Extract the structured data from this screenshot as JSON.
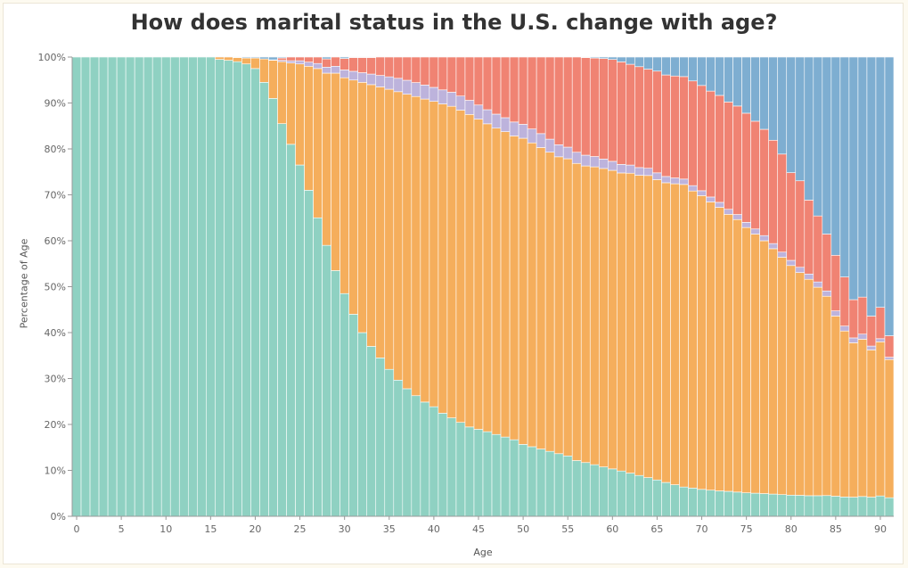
{
  "chart_data": {
    "type": "bar",
    "title": "How does marital status in the U.S. change with age?",
    "xlabel": "Age",
    "ylabel": "Percentage of Age",
    "stacked": true,
    "normalized": true,
    "ylim": [
      0,
      100
    ],
    "xlim": [
      0,
      91
    ],
    "y_ticks": [
      "0%",
      "10%",
      "20%",
      "30%",
      "40%",
      "50%",
      "60%",
      "70%",
      "80%",
      "90%",
      "100%"
    ],
    "x_ticks": [
      "0",
      "5",
      "10",
      "15",
      "20",
      "25",
      "30",
      "35",
      "40",
      "45",
      "50",
      "55",
      "60",
      "65",
      "70",
      "75",
      "80",
      "85",
      "90"
    ],
    "colors": [
      "#8fd1c2",
      "#f5ae5c",
      "#bdb3dc",
      "#f08373",
      "#7eaed1"
    ],
    "x": [
      0,
      1,
      2,
      3,
      4,
      5,
      6,
      7,
      8,
      9,
      10,
      11,
      12,
      13,
      14,
      15,
      16,
      17,
      18,
      19,
      20,
      21,
      22,
      23,
      24,
      25,
      26,
      27,
      28,
      29,
      30,
      31,
      32,
      33,
      34,
      35,
      36,
      37,
      38,
      39,
      40,
      41,
      42,
      43,
      44,
      45,
      46,
      47,
      48,
      49,
      50,
      51,
      52,
      53,
      54,
      55,
      56,
      57,
      58,
      59,
      60,
      61,
      62,
      63,
      64,
      65,
      66,
      67,
      68,
      69,
      70,
      71,
      72,
      73,
      74,
      75,
      76,
      77,
      78,
      79,
      80,
      81,
      82,
      83,
      84,
      85,
      86,
      87,
      88,
      89,
      90,
      91
    ],
    "series": [
      {
        "values": [
          100,
          100,
          100,
          100,
          100,
          100,
          100,
          100,
          100,
          100,
          100,
          100,
          100,
          100,
          100,
          100,
          99.5,
          99.3,
          99,
          98.5,
          97.5,
          94.5,
          91,
          85.5,
          81,
          76.5,
          71,
          65,
          59,
          53.5,
          48.5,
          44,
          40,
          37,
          34.5,
          32,
          29.5,
          27.5,
          26,
          24.5,
          23.5,
          22,
          21,
          20,
          19,
          18.5,
          18,
          17.5,
          17,
          16.5,
          15.5,
          15,
          14.5,
          14,
          13.5,
          13,
          12,
          11.5,
          11,
          10.5,
          10,
          9.5,
          9,
          8.5,
          8,
          7.5,
          7,
          6.5,
          6,
          5.8,
          5.5,
          5.3,
          5.1,
          5,
          4.8,
          4.6,
          4.5,
          4.4,
          4.3,
          4.2,
          4.1,
          4,
          3.9,
          3.9,
          3.9,
          3.9,
          3.9,
          3.9,
          3.9,
          3.9,
          3.9,
          3.9
        ]
      },
      {
        "values": [
          0,
          0,
          0,
          0,
          0,
          0,
          0,
          0,
          0,
          0,
          0,
          0,
          0,
          0,
          0,
          0,
          0.5,
          0.7,
          0.9,
          1.3,
          2.3,
          5.1,
          8.3,
          13.5,
          17.7,
          22,
          27,
          32.5,
          37.5,
          43,
          47,
          51,
          54.5,
          57,
          59,
          61,
          62.5,
          63.5,
          64.5,
          65,
          65.5,
          66,
          66.5,
          66.5,
          66.5,
          66,
          65.5,
          65.5,
          65.5,
          65.5,
          66,
          65.5,
          65,
          64.5,
          64,
          64,
          64,
          63.5,
          63.5,
          63.5,
          63,
          62.5,
          62.5,
          62.5,
          62.5,
          62,
          62,
          62,
          62,
          61,
          60,
          58.5,
          57,
          55.5,
          54,
          52,
          50.5,
          49,
          47.5,
          46,
          44.5,
          42.5,
          41,
          39.5,
          37.5,
          35,
          33.5,
          31.5,
          31,
          30,
          29.5,
          29
        ]
      },
      {
        "values": [
          0,
          0,
          0,
          0,
          0,
          0,
          0,
          0,
          0,
          0,
          0,
          0,
          0,
          0,
          0,
          0,
          0,
          0,
          0,
          0,
          0,
          0,
          0.1,
          0.3,
          0.5,
          0.7,
          0.9,
          1.1,
          1.3,
          1.5,
          1.7,
          1.9,
          2.1,
          2.3,
          2.5,
          2.7,
          2.9,
          3,
          3,
          3,
          3,
          3,
          3,
          3,
          3,
          3,
          3,
          3,
          3,
          3,
          3,
          3,
          3,
          2.8,
          2.6,
          2.5,
          2.4,
          2.3,
          2.2,
          2,
          1.9,
          1.8,
          1.7,
          1.6,
          1.5,
          1.4,
          1.3,
          1.2,
          1.1,
          1.1,
          1,
          1,
          1,
          1,
          1,
          1,
          1,
          1,
          1,
          1,
          1,
          1,
          1,
          1,
          1,
          1,
          1,
          1,
          1,
          0.8,
          0.6,
          0.5
        ]
      },
      {
        "values": [
          0,
          0,
          0,
          0,
          0,
          0,
          0,
          0,
          0,
          0,
          0,
          0,
          0,
          0,
          0,
          0,
          0,
          0,
          0,
          0,
          0,
          0,
          0,
          0.5,
          0.8,
          0.8,
          1.1,
          1.4,
          1.8,
          2,
          2.5,
          3,
          3.3,
          3.6,
          4,
          4.3,
          4.6,
          5,
          5.5,
          6,
          6.5,
          7,
          7.5,
          8.3,
          9.2,
          10.2,
          11.2,
          12.2,
          13,
          14,
          14.5,
          15.5,
          16.5,
          17.7,
          18.9,
          19.4,
          20.5,
          20.9,
          21,
          21.4,
          21.5,
          21.5,
          21,
          21,
          20.5,
          21,
          21,
          21,
          21,
          21.5,
          21.5,
          21.5,
          21.5,
          21.5,
          21.5,
          21.4,
          21,
          20.6,
          20,
          19,
          17,
          16.5,
          14,
          12.5,
          10.7,
          10.8,
          9.9,
          7.8,
          7.3,
          6.1,
          6,
          4.5
        ]
      },
      {
        "values": [
          0,
          0,
          0,
          0,
          0,
          0,
          0,
          0,
          0,
          0,
          0,
          0,
          0,
          0,
          0,
          0,
          0,
          0,
          0.1,
          0.2,
          0.2,
          0.4,
          0.6,
          0.2,
          0,
          0,
          0,
          0,
          0.4,
          0,
          0.3,
          0.1,
          0.1,
          0.1,
          0,
          0,
          0,
          0,
          0,
          0,
          0,
          0,
          0,
          0,
          0,
          0,
          0,
          0,
          0,
          0,
          0,
          0,
          0,
          0,
          0,
          0,
          0,
          0.1,
          0.2,
          0.3,
          0.5,
          1,
          1.5,
          2,
          2.5,
          2.9,
          3.7,
          3.9,
          4,
          4.9,
          5.8,
          6.9,
          7.7,
          9,
          9.7,
          11,
          12.5,
          14,
          16.1,
          18.8,
          22.4,
          23.6,
          27.1,
          30.1,
          33.3,
          38.5,
          44.4,
          49.5,
          47.3,
          52.8,
          47.9,
          58.5
        ]
      }
    ]
  }
}
